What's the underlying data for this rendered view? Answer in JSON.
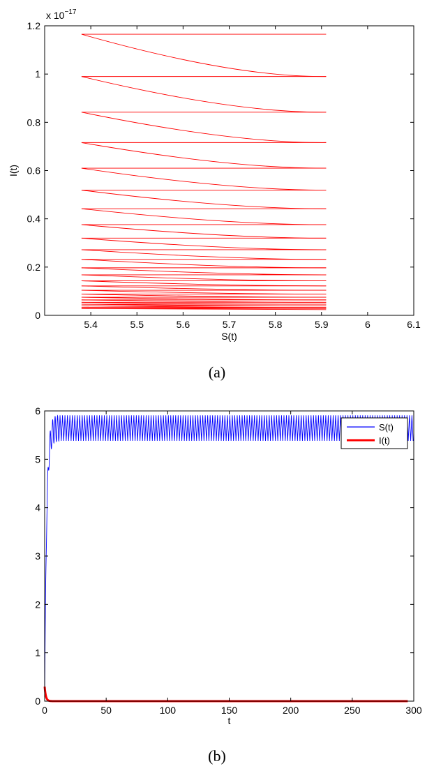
{
  "chart_data": [
    {
      "type": "line",
      "caption": "(a)",
      "xlabel": "S(t)",
      "ylabel": "I(t)",
      "y_exponent_label": "x 10",
      "y_exponent_power": "−17",
      "xlim": [
        5.3,
        6.1
      ],
      "ylim": [
        0,
        1.2
      ],
      "x_ticks": [
        5.4,
        5.5,
        5.6,
        5.7,
        5.8,
        5.9,
        6,
        6.1
      ],
      "x_tick_labels": [
        "5.4",
        "5.5",
        "5.6",
        "5.7",
        "5.8",
        "5.9",
        "6",
        "6.1"
      ],
      "y_ticks": [
        0,
        0.2,
        0.4,
        0.6,
        0.8,
        1,
        1.2
      ],
      "y_tick_labels": [
        "0",
        "0.2",
        "0.4",
        "0.6",
        "0.8",
        "1",
        "1.2"
      ],
      "grid": false,
      "line_color": "#ff0000",
      "s_min": 5.38,
      "s_max": 5.91,
      "cycle_levels": [
        1.165,
        0.99,
        0.842,
        0.716,
        0.61,
        0.519,
        0.442,
        0.376,
        0.32,
        0.272,
        0.232,
        0.197,
        0.168,
        0.143,
        0.122,
        0.104,
        0.088,
        0.075,
        0.064,
        0.054,
        0.046,
        0.039,
        0.033,
        0.028
      ]
    },
    {
      "type": "line",
      "caption": "(b)",
      "xlabel": "t",
      "ylabel": "",
      "xlim": [
        0,
        300
      ],
      "ylim": [
        0,
        6
      ],
      "x_ticks": [
        0,
        50,
        100,
        150,
        200,
        250,
        300
      ],
      "x_tick_labels": [
        "0",
        "50",
        "100",
        "150",
        "200",
        "250",
        "300"
      ],
      "y_ticks": [
        0,
        1,
        2,
        3,
        4,
        5,
        6
      ],
      "y_tick_labels": [
        "0",
        "1",
        "2",
        "3",
        "4",
        "5",
        "6"
      ],
      "grid": false,
      "legend_position": "top-right",
      "series": [
        {
          "name": "S(t)",
          "color": "#0000ff",
          "initial": 0,
          "approach_time": 10,
          "osc_min": 5.38,
          "osc_max": 5.91,
          "period": 2
        },
        {
          "name": "I(t)",
          "color": "#ff0000",
          "initial": 0.3,
          "decay_time": 3,
          "level": 0
        }
      ]
    }
  ]
}
